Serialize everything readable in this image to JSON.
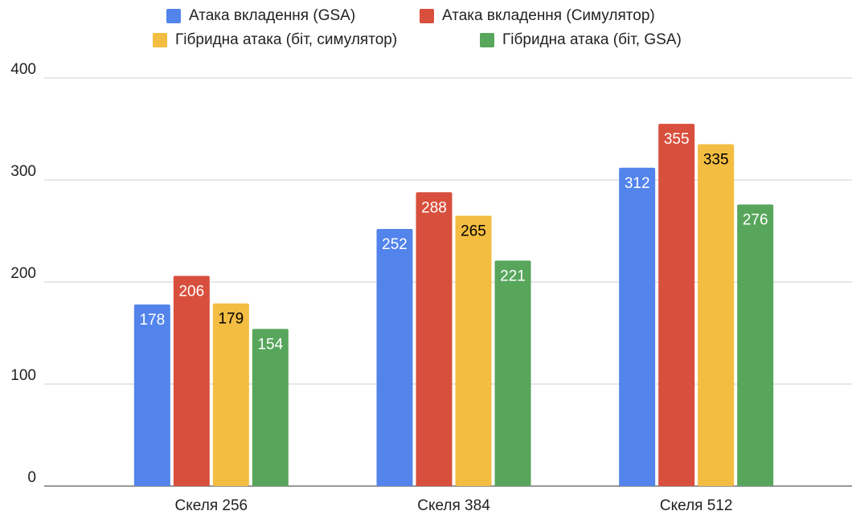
{
  "chart_data": {
    "type": "bar",
    "categories": [
      "Скеля 256",
      "Скеля 384",
      "Скеля 512"
    ],
    "series": [
      {
        "name": "Атака вкладення (GSA)",
        "color": "#5384ec",
        "label_color": "#ffffff",
        "values": [
          178,
          252,
          312
        ]
      },
      {
        "name": "Атака вкладення (Симулятор)",
        "color": "#d94f3d",
        "label_color": "#ffffff",
        "values": [
          206,
          288,
          355
        ]
      },
      {
        "name": "Гібридна атака (біт, симулятор)",
        "color": "#f3bd42",
        "label_color": "#000000",
        "values": [
          179,
          265,
          335
        ]
      },
      {
        "name": "Гібридна атака (біт, GSA)",
        "color": "#58a65c",
        "label_color": "#ffffff",
        "values": [
          154,
          221,
          276
        ]
      }
    ],
    "ylim": [
      0,
      400
    ],
    "yticks": [
      0,
      100,
      200,
      300,
      400
    ],
    "grid": true,
    "legend": "top"
  }
}
